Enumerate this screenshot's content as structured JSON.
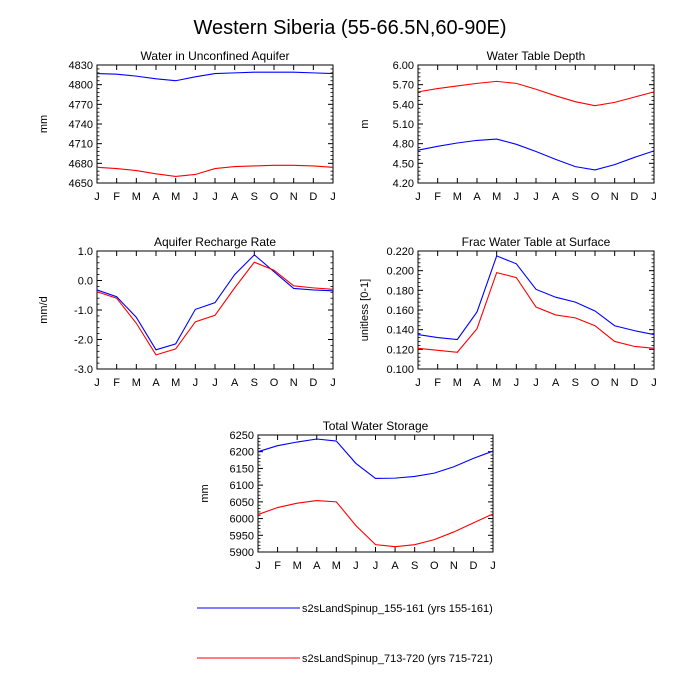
{
  "figure": {
    "title": "Western Siberia (55-66.5N,60-90E)"
  },
  "legend": {
    "items": [
      {
        "label": "s2sLandSpinup_155-161 (yrs 155-161)",
        "color": "#0000ff"
      },
      {
        "label": "s2sLandSpinup_713-720 (yrs 715-721)",
        "color": "#ff0000"
      }
    ]
  },
  "chart_data": [
    {
      "id": "unconfined",
      "type": "line",
      "title": "Water in Unconfined Aquifer",
      "xlabel": "",
      "ylabel": "mm",
      "categories": [
        "J",
        "F",
        "M",
        "A",
        "M",
        "J",
        "J",
        "A",
        "S",
        "O",
        "N",
        "D",
        "J"
      ],
      "ylim": [
        4650,
        4830
      ],
      "yticks": [
        "4650",
        "4680",
        "4710",
        "4740",
        "4770",
        "4800",
        "4830"
      ],
      "series": [
        {
          "name": "s2sLandSpinup_155-161 (yrs 155-161)",
          "color": "#0000ff",
          "values": [
            4817,
            4816,
            4813,
            4809,
            4806,
            4812,
            4817,
            4818,
            4819,
            4819,
            4819,
            4818,
            4817
          ]
        },
        {
          "name": "s2sLandSpinup_713-720 (yrs 715-721)",
          "color": "#ff0000",
          "values": [
            4674,
            4672,
            4669,
            4664,
            4660,
            4663,
            4672,
            4675,
            4676,
            4677,
            4677,
            4676,
            4674
          ]
        }
      ]
    },
    {
      "id": "wtd",
      "type": "line",
      "title": "Water Table Depth",
      "xlabel": "",
      "ylabel": "m",
      "categories": [
        "J",
        "F",
        "M",
        "A",
        "M",
        "J",
        "J",
        "A",
        "S",
        "O",
        "N",
        "D",
        "J"
      ],
      "ylim": [
        4.2,
        6.0
      ],
      "yticks": [
        "4.20",
        "4.50",
        "4.80",
        "5.10",
        "5.40",
        "5.70",
        "6.00"
      ],
      "series": [
        {
          "name": "s2sLandSpinup_155-161 (yrs 155-161)",
          "color": "#0000ff",
          "values": [
            4.7,
            4.76,
            4.81,
            4.85,
            4.87,
            4.79,
            4.68,
            4.56,
            4.45,
            4.4,
            4.48,
            4.59,
            4.69
          ]
        },
        {
          "name": "s2sLandSpinup_713-720 (yrs 715-721)",
          "color": "#ff0000",
          "values": [
            5.59,
            5.64,
            5.68,
            5.72,
            5.75,
            5.72,
            5.63,
            5.53,
            5.44,
            5.38,
            5.43,
            5.51,
            5.59
          ]
        }
      ]
    },
    {
      "id": "recharge",
      "type": "line",
      "title": "Aquifer Recharge Rate",
      "xlabel": "",
      "ylabel": "mm/d",
      "categories": [
        "J",
        "F",
        "M",
        "A",
        "M",
        "J",
        "J",
        "A",
        "S",
        "O",
        "N",
        "D",
        "J"
      ],
      "ylim": [
        -3.0,
        1.0
      ],
      "yticks": [
        "-3.0",
        "-2.0",
        "-1.0",
        "0.0",
        "1.0"
      ],
      "series": [
        {
          "name": "s2sLandSpinup_155-161 (yrs 155-161)",
          "color": "#0000ff",
          "values": [
            -0.32,
            -0.55,
            -1.25,
            -2.35,
            -2.15,
            -0.98,
            -0.75,
            0.2,
            0.87,
            0.3,
            -0.27,
            -0.32,
            -0.35
          ]
        },
        {
          "name": "s2sLandSpinup_713-720 (yrs 715-721)",
          "color": "#ff0000",
          "values": [
            -0.38,
            -0.6,
            -1.45,
            -2.52,
            -2.32,
            -1.4,
            -1.18,
            -0.25,
            0.62,
            0.35,
            -0.18,
            -0.25,
            -0.3
          ]
        }
      ]
    },
    {
      "id": "frac",
      "type": "line",
      "title": "Frac Water Table at Surface",
      "xlabel": "",
      "ylabel": "unitless [0-1]",
      "categories": [
        "J",
        "F",
        "M",
        "A",
        "M",
        "J",
        "J",
        "A",
        "S",
        "O",
        "N",
        "D",
        "J"
      ],
      "ylim": [
        0.1,
        0.22
      ],
      "yticks": [
        "0.100",
        "0.120",
        "0.140",
        "0.160",
        "0.180",
        "0.200",
        "0.220"
      ],
      "series": [
        {
          "name": "s2sLandSpinup_155-161 (yrs 155-161)",
          "color": "#0000ff",
          "values": [
            0.135,
            0.132,
            0.13,
            0.158,
            0.215,
            0.207,
            0.181,
            0.173,
            0.168,
            0.159,
            0.144,
            0.139,
            0.135
          ]
        },
        {
          "name": "s2sLandSpinup_713-720 (yrs 715-721)",
          "color": "#ff0000",
          "values": [
            0.121,
            0.119,
            0.117,
            0.141,
            0.198,
            0.193,
            0.163,
            0.155,
            0.152,
            0.144,
            0.128,
            0.123,
            0.121
          ]
        }
      ]
    },
    {
      "id": "tws",
      "type": "line",
      "title": "Total Water Storage",
      "xlabel": "",
      "ylabel": "mm",
      "categories": [
        "J",
        "F",
        "M",
        "A",
        "M",
        "J",
        "J",
        "A",
        "S",
        "O",
        "N",
        "D",
        "J"
      ],
      "ylim": [
        5900,
        6250
      ],
      "yticks": [
        "5900",
        "5950",
        "6000",
        "6050",
        "6100",
        "6150",
        "6200",
        "6250"
      ],
      "series": [
        {
          "name": "s2sLandSpinup_155-161 (yrs 155-161)",
          "color": "#0000ff",
          "values": [
            6200,
            6218,
            6229,
            6238,
            6232,
            6165,
            6120,
            6121,
            6126,
            6136,
            6155,
            6180,
            6202
          ]
        },
        {
          "name": "s2sLandSpinup_713-720 (yrs 715-721)",
          "color": "#ff0000",
          "values": [
            6012,
            6033,
            6046,
            6054,
            6050,
            5979,
            5922,
            5916,
            5922,
            5937,
            5960,
            5987,
            6014
          ]
        }
      ]
    }
  ]
}
